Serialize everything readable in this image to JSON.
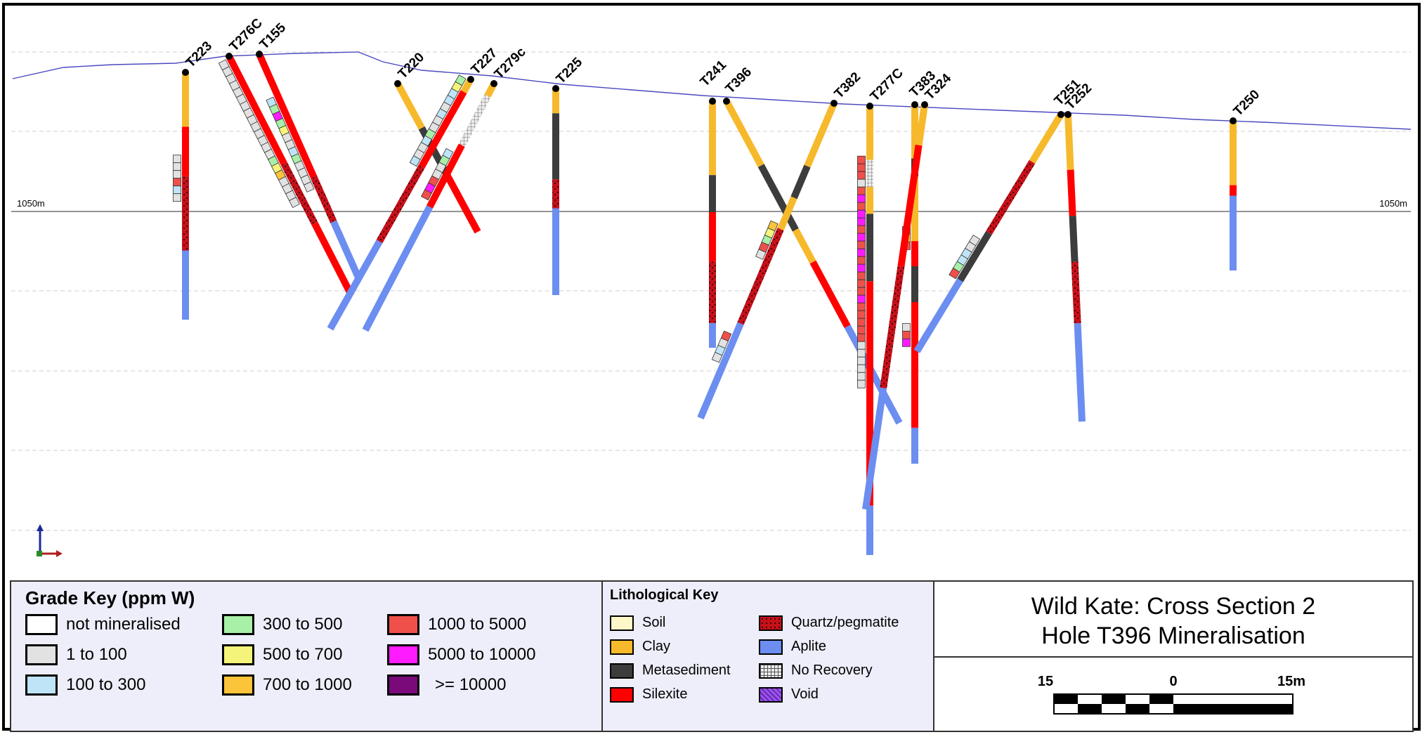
{
  "section": {
    "elevation_label_left": "1050m",
    "elevation_label_right": "1050m",
    "holes": [
      {
        "id": "T223"
      },
      {
        "id": "T276C"
      },
      {
        "id": "T155"
      },
      {
        "id": "T220"
      },
      {
        "id": "T227"
      },
      {
        "id": "T279c"
      },
      {
        "id": "T225"
      },
      {
        "id": "T241"
      },
      {
        "id": "T396"
      },
      {
        "id": "T382"
      },
      {
        "id": "T277C"
      },
      {
        "id": "T383"
      },
      {
        "id": "T324"
      },
      {
        "id": "T251"
      },
      {
        "id": "T252"
      },
      {
        "id": "T250"
      }
    ]
  },
  "grade_key": {
    "title": "Grade Key (ppm W)",
    "items": [
      {
        "label": "not mineralised",
        "color": "#ffffff"
      },
      {
        "label": "1 to 100",
        "color": "#e2e2e2"
      },
      {
        "label": "100 to 300",
        "color": "#bfe4f7"
      },
      {
        "label": "300 to 500",
        "color": "#a8f0a8"
      },
      {
        "label": "500 to 700",
        "color": "#f4f47a"
      },
      {
        "label": "700 to 1000",
        "color": "#fbc43a"
      },
      {
        "label": "1000 to 5000",
        "color": "#f0504a"
      },
      {
        "label": "5000 to 10000",
        "color": "#ff1bff"
      },
      {
        "label": ">= 10000",
        "color": "#7a0a7a"
      }
    ]
  },
  "litho_key": {
    "title": "Lithological Key",
    "items": [
      {
        "label": "Soil",
        "color": "#fcf6c8",
        "pattern": "solid"
      },
      {
        "label": "Clay",
        "color": "#f7b92c",
        "pattern": "solid"
      },
      {
        "label": "Metasediment",
        "color": "#3c3c3c",
        "pattern": "solid"
      },
      {
        "label": "Silexite",
        "color": "#ff0000",
        "pattern": "solid"
      },
      {
        "label": "Quartz/pegmatite",
        "color": "#c8101a",
        "pattern": "speckled"
      },
      {
        "label": "Aplite",
        "color": "#6c8ef0",
        "pattern": "solid"
      },
      {
        "label": "No Recovery",
        "color": "#d8d8d8",
        "pattern": "grid"
      },
      {
        "label": "Void",
        "color": "#9a56e8",
        "pattern": "hatched"
      }
    ]
  },
  "title": {
    "line1": "Wild Kate: Cross Section 2",
    "line2": "Hole T396 Mineralisation"
  },
  "scale_bar": {
    "labels": [
      "15",
      "0",
      "15m"
    ]
  },
  "colors": {
    "clay": "#f7b92c",
    "silexite": "#ff0000",
    "quartz": "#c8101a",
    "metased": "#3c3c3c",
    "aplite": "#6c8ef0",
    "topo": "#4a4ac0"
  }
}
